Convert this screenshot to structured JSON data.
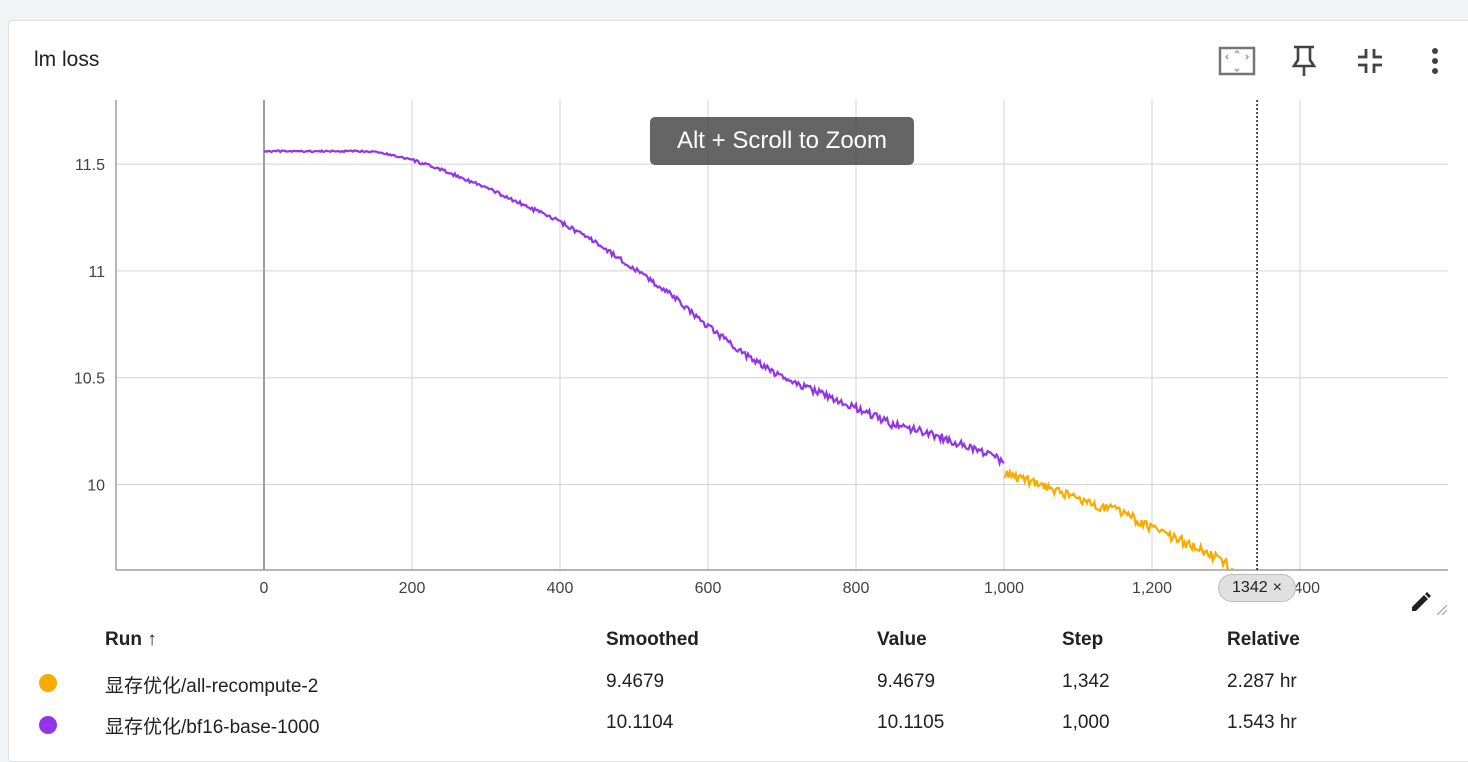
{
  "card": {
    "title": "lm loss"
  },
  "toolbar": {
    "icons": [
      "fit-domain-icon",
      "pin-icon",
      "collapse-icon",
      "more-vert-icon"
    ]
  },
  "tooltip": {
    "text": "Alt + Scroll to Zoom"
  },
  "step_chip": {
    "value": "1342",
    "close": "×"
  },
  "table": {
    "headers": {
      "run": "Run ↑",
      "smoothed": "Smoothed",
      "value": "Value",
      "step": "Step",
      "relative": "Relative"
    },
    "rows": [
      {
        "color": "#f9ab00",
        "run": "显存优化/all-recompute-2",
        "smoothed": "9.4679",
        "value": "9.4679",
        "step": "1,342",
        "relative": "2.287 hr"
      },
      {
        "color": "#9334e6",
        "run": "显存优化/bf16-base-1000",
        "smoothed": "10.1104",
        "value": "10.1105",
        "step": "1,000",
        "relative": "1.543 hr"
      }
    ]
  },
  "chart_data": {
    "type": "line",
    "title": "lm loss",
    "xlabel": "",
    "ylabel": "",
    "xlim": [
      -200,
      1600
    ],
    "ylim": [
      9.6,
      11.8
    ],
    "x_ticks": [
      0,
      200,
      400,
      600,
      800,
      1000,
      1200,
      1400
    ],
    "x_tick_labels": [
      "0",
      "200",
      "400",
      "600",
      "800",
      "1,000",
      "1,200",
      "1,400"
    ],
    "y_ticks": [
      10,
      10.5,
      11,
      11.5
    ],
    "y_tick_labels": [
      "10",
      "10.5",
      "11",
      "11.5"
    ],
    "grid": true,
    "cursor_step": 1342,
    "series": [
      {
        "name": "显存优化/bf16-base-1000",
        "color": "#9334e6",
        "x": [
          0,
          50,
          100,
          150,
          200,
          250,
          300,
          350,
          400,
          450,
          500,
          550,
          600,
          650,
          700,
          750,
          800,
          850,
          900,
          950,
          1000
        ],
        "y": [
          11.56,
          11.56,
          11.56,
          11.56,
          11.52,
          11.46,
          11.39,
          11.31,
          11.23,
          11.13,
          11.01,
          10.89,
          10.74,
          10.61,
          10.5,
          10.43,
          10.36,
          10.28,
          10.24,
          10.18,
          10.11
        ]
      },
      {
        "name": "显存优化/all-recompute-2",
        "color": "#f9ab00",
        "x": [
          1000,
          1050,
          1100,
          1150,
          1200,
          1250,
          1300,
          1342
        ],
        "y": [
          10.05,
          10.0,
          9.93,
          9.88,
          9.8,
          9.72,
          9.63,
          9.47
        ]
      }
    ]
  }
}
